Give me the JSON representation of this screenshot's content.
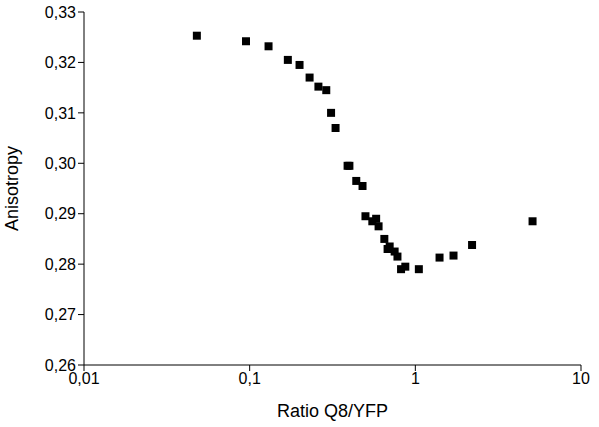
{
  "chart_data": {
    "type": "scatter",
    "x_label": "Ratio Q8/YFP",
    "y_label": "Anisotropy",
    "log": "x",
    "grid": false,
    "marker": "square",
    "color": "#000000",
    "xlim": [
      0.01,
      10
    ],
    "xticks": [
      {
        "value": 0.01,
        "label": "0,01"
      },
      {
        "value": 0.1,
        "label": "0,1"
      },
      1,
      10
    ],
    "ylim": [
      0.26,
      0.33
    ],
    "yticks": [
      {
        "value": 0.26,
        "label": "0,26"
      },
      {
        "value": 0.27,
        "label": "0,27"
      },
      {
        "value": 0.28,
        "label": "0,28"
      },
      {
        "value": 0.29,
        "label": "0,29"
      },
      {
        "value": 0.3,
        "label": "0,30"
      },
      {
        "value": 0.31,
        "label": "0,31"
      },
      {
        "value": 0.32,
        "label": "0,32"
      },
      {
        "value": 0.33,
        "label": "0,33"
      }
    ],
    "x": [
      0.048,
      0.095,
      0.13,
      0.17,
      0.2,
      0.23,
      0.26,
      0.29,
      0.31,
      0.33,
      0.39,
      0.4,
      0.44,
      0.48,
      0.5,
      0.55,
      0.58,
      0.6,
      0.65,
      0.68,
      0.7,
      0.75,
      0.78,
      0.82,
      0.87,
      1.05,
      1.4,
      1.7,
      2.2,
      5.1
    ],
    "values": [
      0.3253,
      0.3242,
      0.3232,
      0.3205,
      0.3195,
      0.317,
      0.3152,
      0.3145,
      0.31,
      0.307,
      0.2995,
      0.2995,
      0.2965,
      0.2955,
      0.2895,
      0.2885,
      0.289,
      0.2875,
      0.285,
      0.283,
      0.2835,
      0.2825,
      0.2815,
      0.279,
      0.2795,
      0.279,
      0.2813,
      0.2817,
      0.2838,
      0.2885
    ]
  }
}
